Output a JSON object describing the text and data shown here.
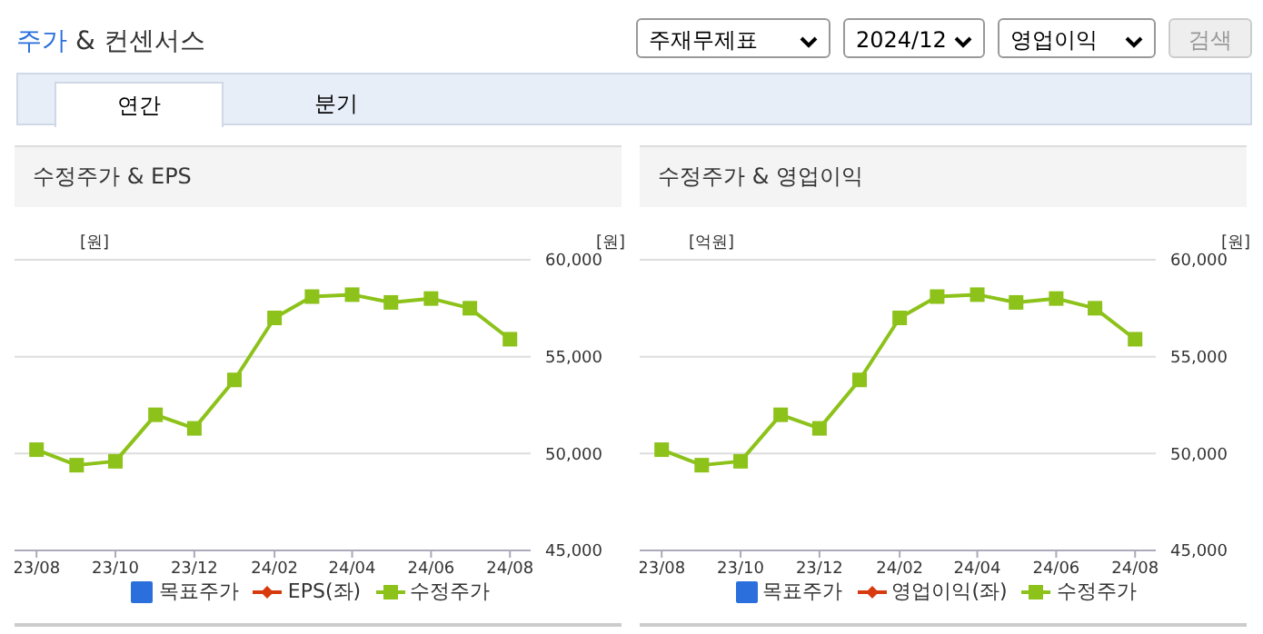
{
  "chart_data": [
    {
      "type": "line",
      "title": "수정주가 & EPS",
      "ylabel": "[원]",
      "y2label": "[원]",
      "annotations": [
        "주가 & 컨센서스",
        "주재무제표",
        "2024/12",
        "영업이익",
        "검색",
        "연간",
        "분기"
      ],
      "x": [
        "2023-08",
        "2023-09",
        "2023-10",
        "2023-11",
        "2023-12",
        "2024-01",
        "2024-02",
        "2024-03",
        "2024-04",
        "2024-05",
        "2024-06",
        "2024-07",
        "2024-08"
      ],
      "xlim": [
        "2023-07-15",
        "2024-08-17"
      ],
      "xticks": [
        {
          "value": "2023-08",
          "label": "23/08"
        },
        {
          "value": "2023-10",
          "label": "23/10"
        },
        {
          "value": "2023-12",
          "label": "23/12"
        },
        {
          "value": "2024-02",
          "label": "24/02"
        },
        {
          "value": "2024-04",
          "label": "24/04"
        },
        {
          "value": "2024-06",
          "label": "24/06"
        },
        {
          "value": "2024-08",
          "label": "24/08"
        }
      ],
      "y2lim": [
        45000,
        60000
      ],
      "y2ticks": [
        {
          "value": 45000,
          "label": "45,000"
        },
        {
          "value": 50000,
          "label": "50,000"
        },
        {
          "value": 55000,
          "label": "55,000"
        },
        {
          "value": 60000,
          "label": "60,000"
        }
      ],
      "grid": "y",
      "legend": "bottom",
      "series": [
        {
          "name": "목표주가",
          "type": "bar",
          "color": "#2a6fdb",
          "axis": "y2",
          "values": [
            null,
            null,
            null,
            null,
            null,
            null,
            null,
            null,
            null,
            null,
            null,
            null,
            null
          ]
        },
        {
          "name": "EPS(좌)",
          "color": "#d83a10",
          "marker": "diamond",
          "values": [
            null,
            null,
            null,
            null,
            null,
            null,
            null,
            null,
            null,
            null,
            null,
            null,
            null
          ]
        },
        {
          "name": "수정주가",
          "color": "#8cc21a",
          "marker": "square",
          "axis": "y2",
          "values": [
            50200,
            49400,
            49600,
            52000,
            51300,
            53800,
            57000,
            58100,
            58200,
            57800,
            58000,
            57500,
            55900
          ]
        }
      ]
    },
    {
      "type": "line",
      "title": "수정주가 & 영업이익",
      "ylabel": "[억원]",
      "y2label": "[원]",
      "x": [
        "2023-08",
        "2023-09",
        "2023-10",
        "2023-11",
        "2023-12",
        "2024-01",
        "2024-02",
        "2024-03",
        "2024-04",
        "2024-05",
        "2024-06",
        "2024-07",
        "2024-08"
      ],
      "xlim": [
        "2023-07-15",
        "2024-08-17"
      ],
      "xticks": [
        {
          "value": "2023-08",
          "label": "23/08"
        },
        {
          "value": "2023-10",
          "label": "23/10"
        },
        {
          "value": "2023-12",
          "label": "23/12"
        },
        {
          "value": "2024-02",
          "label": "24/02"
        },
        {
          "value": "2024-04",
          "label": "24/04"
        },
        {
          "value": "2024-06",
          "label": "24/06"
        },
        {
          "value": "2024-08",
          "label": "24/08"
        }
      ],
      "y2lim": [
        45000,
        60000
      ],
      "y2ticks": [
        {
          "value": 45000,
          "label": "45,000"
        },
        {
          "value": 50000,
          "label": "50,000"
        },
        {
          "value": 55000,
          "label": "55,000"
        },
        {
          "value": 60000,
          "label": "60,000"
        }
      ],
      "grid": "y",
      "legend": "bottom",
      "series": [
        {
          "name": "목표주가",
          "type": "bar",
          "color": "#2a6fdb",
          "axis": "y2",
          "values": [
            null,
            null,
            null,
            null,
            null,
            null,
            null,
            null,
            null,
            null,
            null,
            null,
            null
          ]
        },
        {
          "name": "영업이익(좌)",
          "color": "#d83a10",
          "marker": "diamond",
          "values": [
            null,
            null,
            null,
            null,
            null,
            null,
            null,
            null,
            null,
            null,
            null,
            null,
            null
          ]
        },
        {
          "name": "수정주가",
          "color": "#8cc21a",
          "marker": "square",
          "axis": "y2",
          "values": [
            50200,
            49400,
            49600,
            52000,
            51300,
            53800,
            57000,
            58100,
            58200,
            57800,
            58000,
            57500,
            55900
          ]
        }
      ]
    }
  ]
}
